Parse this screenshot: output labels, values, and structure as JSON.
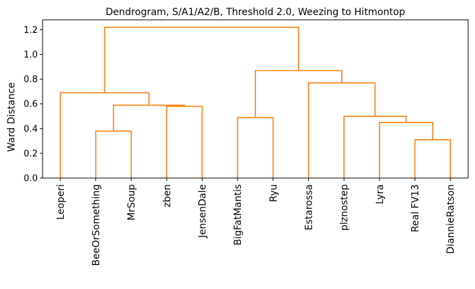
{
  "chart_data": {
    "type": "dendrogram",
    "title": "Dendrogram, S/A1/A2/B, Threshold 2.0, Weezing to Hitmontop",
    "ylabel": "Ward Distance",
    "xlabel": "",
    "ylim": [
      0,
      1.28
    ],
    "yticks": [
      "0.0",
      "0.2",
      "0.4",
      "0.6",
      "0.8",
      "1.0",
      "1.2"
    ],
    "link_color": "#ff7f0e",
    "leaves": [
      "Leoperi",
      "BeeOrSomething",
      "MrSoup",
      "zben",
      "JensenDale",
      "BigFatMantis",
      "Ryu",
      "Estarossa",
      "plznostep",
      "Lyra",
      "Real FV13",
      "DiannieRatson"
    ],
    "merges": [
      {
        "left": "leaf:1",
        "right": "leaf:2",
        "height": 0.38
      },
      {
        "left": "leaf:3",
        "right": "leaf:4",
        "height": 0.58
      },
      {
        "left": "node:0",
        "right": "node:1",
        "height": 0.59
      },
      {
        "left": "leaf:0",
        "right": "node:2",
        "height": 0.69
      },
      {
        "left": "leaf:5",
        "right": "leaf:6",
        "height": 0.49
      },
      {
        "left": "leaf:10",
        "right": "leaf:11",
        "height": 0.31
      },
      {
        "left": "leaf:9",
        "right": "node:5",
        "height": 0.45
      },
      {
        "left": "leaf:8",
        "right": "node:6",
        "height": 0.5
      },
      {
        "left": "leaf:7",
        "right": "node:7",
        "height": 0.77
      },
      {
        "left": "node:4",
        "right": "node:8",
        "height": 0.87
      },
      {
        "left": "node:3",
        "right": "node:9",
        "height": 1.22
      }
    ]
  }
}
